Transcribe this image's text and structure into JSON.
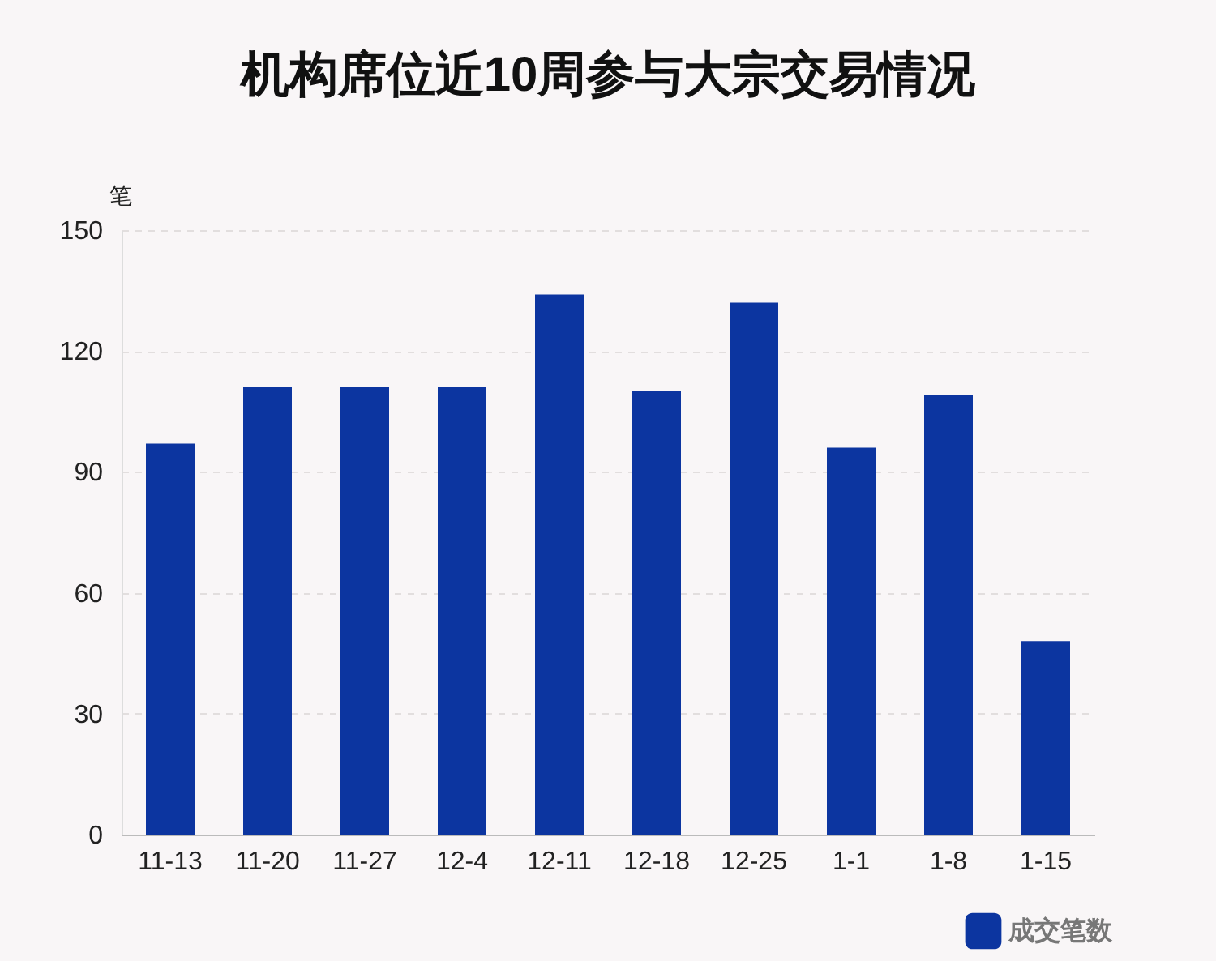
{
  "chart_data": {
    "type": "bar",
    "title": "机构席位近10周参与大宗交易情况",
    "ylabel": "笔",
    "categories": [
      "11-13",
      "11-20",
      "11-27",
      "12-4",
      "12-11",
      "12-18",
      "12-25",
      "1-1",
      "1-8",
      "1-15"
    ],
    "series": [
      {
        "name": "成交笔数",
        "color": "#0c35a0",
        "values": [
          97,
          111,
          111,
          111,
          134,
          110,
          132,
          96,
          109,
          48
        ]
      }
    ],
    "ylim": [
      0,
      150
    ],
    "yticks": [
      0,
      30,
      60,
      90,
      120,
      150
    ],
    "grid": "y",
    "legend": "bottom right"
  }
}
